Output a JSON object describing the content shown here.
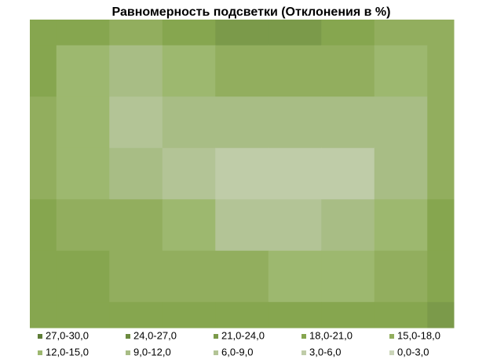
{
  "chart_data": {
    "type": "contour",
    "title": "Равномерность подсветки (Отклонения в %)",
    "levels": [
      0,
      3,
      6,
      9,
      12,
      15,
      18,
      21,
      24,
      27,
      30
    ],
    "z": [
      [
        19,
        18,
        17,
        20,
        22,
        22,
        20,
        17,
        16
      ],
      [
        18,
        14,
        10,
        12,
        15,
        16,
        15,
        12,
        15
      ],
      [
        17,
        13,
        8,
        9,
        10,
        10,
        9,
        10,
        16
      ],
      [
        16,
        14,
        11,
        7,
        5,
        5,
        5,
        9,
        17
      ],
      [
        18,
        17,
        15,
        12,
        8,
        6,
        9,
        14,
        18
      ],
      [
        20,
        19,
        17,
        16,
        15,
        14,
        14,
        17,
        20
      ],
      [
        20,
        19,
        19,
        19,
        19,
        18,
        18,
        19,
        21
      ]
    ],
    "series": [
      {
        "name": "27,0-30,0",
        "color": "#5e7d37"
      },
      {
        "name": "24,0-27,0",
        "color": "#6c8b40"
      },
      {
        "name": "21,0-24,0",
        "color": "#7b9a4a"
      },
      {
        "name": "18,0-21,0",
        "color": "#86a64f"
      },
      {
        "name": "15,0-18,0",
        "color": "#92ae5e"
      },
      {
        "name": "12,0-15,0",
        "color": "#9db86f"
      },
      {
        "name": "9,0-12,0",
        "color": "#a8bd85"
      },
      {
        "name": "6,0-9,0",
        "color": "#b3c496"
      },
      {
        "name": "3,0-6,0",
        "color": "#bfcca8"
      },
      {
        "name": "0,0-3,0",
        "color": "#cbd5b9"
      }
    ]
  }
}
